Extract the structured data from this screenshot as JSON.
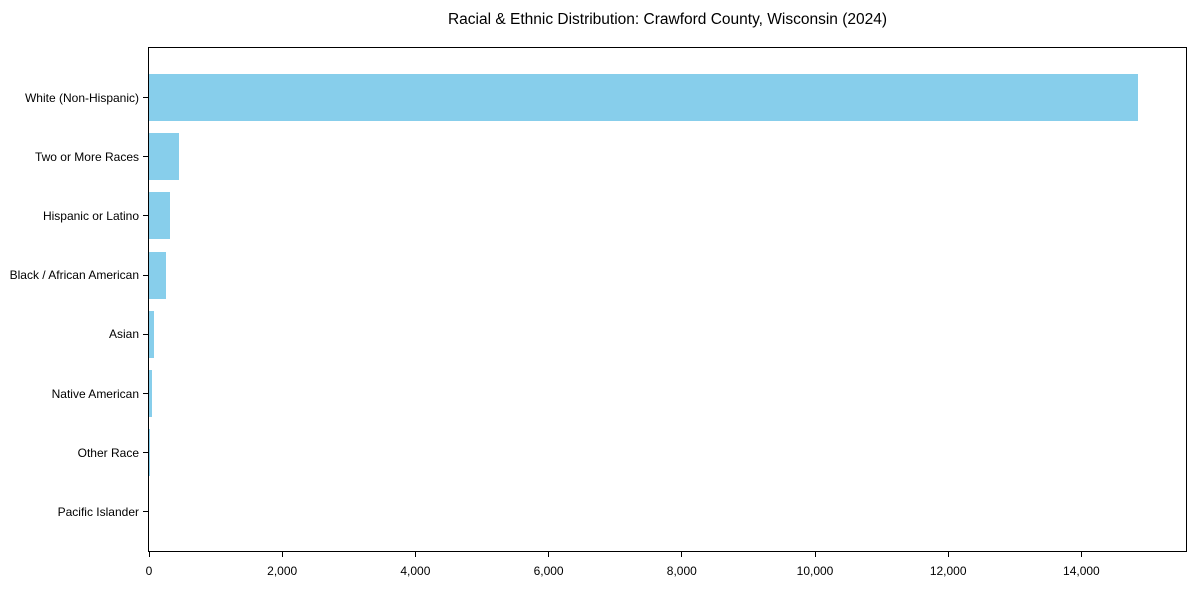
{
  "chart_data": {
    "type": "bar",
    "orientation": "horizontal",
    "title": "Racial & Ethnic Distribution: Crawford County, Wisconsin (2024)",
    "xlabel": "",
    "ylabel": "",
    "categories": [
      "White (Non-Hispanic)",
      "Two or More Races",
      "Hispanic or Latino",
      "Black / African American",
      "Asian",
      "Native American",
      "Other Race",
      "Pacific Islander"
    ],
    "values": [
      14850,
      450,
      320,
      255,
      80,
      45,
      12,
      0
    ],
    "bar_color": "#87CEEB",
    "axis_color": "#000000",
    "text_color": "#000000",
    "background_color": "#ffffff",
    "xlim": [
      0,
      15600
    ],
    "xticks": [
      0,
      2000,
      4000,
      6000,
      8000,
      10000,
      12000,
      14000
    ],
    "xtick_labels": [
      "0",
      "2,000",
      "4,000",
      "6,000",
      "8,000",
      "10,000",
      "12,000",
      "14,000"
    ],
    "grid": false,
    "legend": "none"
  }
}
